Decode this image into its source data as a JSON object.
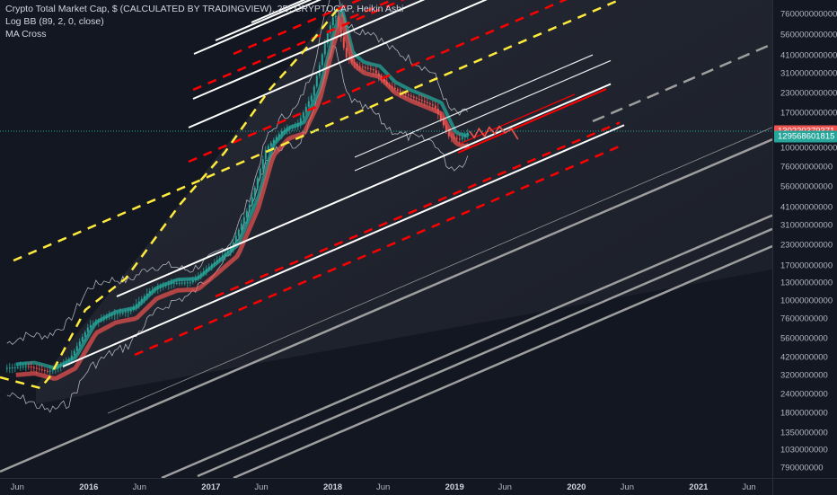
{
  "legend": {
    "title": "Crypto Total Market Cap, $ (CALCULATED BY TRADINGVIEW), 2D, CRYPTOCAP, Heikin Ashi",
    "indicator1": "Log BB (89, 2, 0, close)",
    "indicator2": "MA Cross"
  },
  "price_badges": {
    "current": "130220379371",
    "ma": "129568601815"
  },
  "colors": {
    "background": "#131722",
    "current_badge": "#ef5350",
    "ma_badge": "#26a69a",
    "up": "#26a69a",
    "down": "#ef5350",
    "channel_solid": "#ffffff",
    "channel_dashed_red": "#ff0000",
    "channel_dashed_yellow": "#ffeb3b",
    "projection": "#9e9e9e"
  },
  "chart_data": {
    "type": "line",
    "scale": "log",
    "title": "Crypto Total Market Cap, $ (CALCULATED BY TRADINGVIEW), 2D, CRYPTOCAP, Heikin Ashi",
    "y_ticks": [
      "760000000000",
      "560000000000",
      "410000000000",
      "310000000000",
      "230000000000",
      "170000000000",
      "130000000000",
      "100000000000",
      "76000000000",
      "56000000000",
      "41000000000",
      "31000000000",
      "23000000000",
      "17000000000",
      "13000000000",
      "10000000000",
      "7600000000",
      "5600000000",
      "4200000000",
      "3200000000",
      "2400000000",
      "1800000000",
      "1350000000",
      "1030000000",
      "790000000"
    ],
    "x_ticks": [
      {
        "label": "Jun",
        "date": "2015-06-01",
        "year": false
      },
      {
        "label": "2016",
        "date": "2016-01-01",
        "year": true
      },
      {
        "label": "Jun",
        "date": "2016-06-01",
        "year": false
      },
      {
        "label": "2017",
        "date": "2017-01-01",
        "year": true
      },
      {
        "label": "Jun",
        "date": "2017-06-01",
        "year": false
      },
      {
        "label": "2018",
        "date": "2018-01-01",
        "year": true
      },
      {
        "label": "Jun",
        "date": "2018-06-01",
        "year": false
      },
      {
        "label": "2019",
        "date": "2019-01-01",
        "year": true
      },
      {
        "label": "Jun",
        "date": "2019-06-01",
        "year": false
      },
      {
        "label": "2020",
        "date": "2020-01-01",
        "year": true
      },
      {
        "label": "Jun",
        "date": "2020-06-01",
        "year": false
      },
      {
        "label": "2021",
        "date": "2021-01-01",
        "year": true
      },
      {
        "label": "Jun",
        "date": "2021-06-01",
        "year": false
      }
    ],
    "series": [
      {
        "x": [
          "2015-05-01",
          "2015-07-01",
          "2015-09-01",
          "2015-11-01",
          "2016-01-01",
          "2016-03-01",
          "2016-05-01",
          "2016-07-01",
          "2016-09-01",
          "2016-11-01",
          "2017-01-01",
          "2017-03-01",
          "2017-05-01",
          "2017-06-15",
          "2017-08-01",
          "2017-09-15",
          "2017-11-01",
          "2017-12-15",
          "2018-01-07",
          "2018-02-10",
          "2018-03-15",
          "2018-05-01",
          "2018-06-15",
          "2018-08-01",
          "2018-09-15",
          "2018-11-01",
          "2018-12-15",
          "2019-01-15",
          "2019-02-15"
        ],
        "y": [
          3600000000,
          3700000000,
          3400000000,
          4000000000,
          6800000000,
          8000000000,
          8500000000,
          11500000000,
          13000000000,
          13200000000,
          17000000000,
          22000000000,
          45000000000,
          100000000000,
          130000000000,
          140000000000,
          230000000000,
          560000000000,
          790000000000,
          400000000000,
          350000000000,
          330000000000,
          260000000000,
          230000000000,
          210000000000,
          190000000000,
          120000000000,
          115000000000,
          130000000000
        ]
      }
    ],
    "forecast": {
      "x": [
        "2019-02-15",
        "2019-03-01",
        "2019-03-15",
        "2019-04-01",
        "2019-04-15",
        "2019-05-01",
        "2019-05-15",
        "2019-06-01",
        "2019-06-20",
        "2019-07-10"
      ],
      "y": [
        130000000000,
        118000000000,
        135000000000,
        120000000000,
        138000000000,
        125000000000,
        140000000000,
        127000000000,
        135000000000,
        115000000000
      ]
    },
    "ylim": [
      680000000,
      950000000000
    ],
    "xlim": [
      "2015-04-10",
      "2021-08-10"
    ]
  }
}
